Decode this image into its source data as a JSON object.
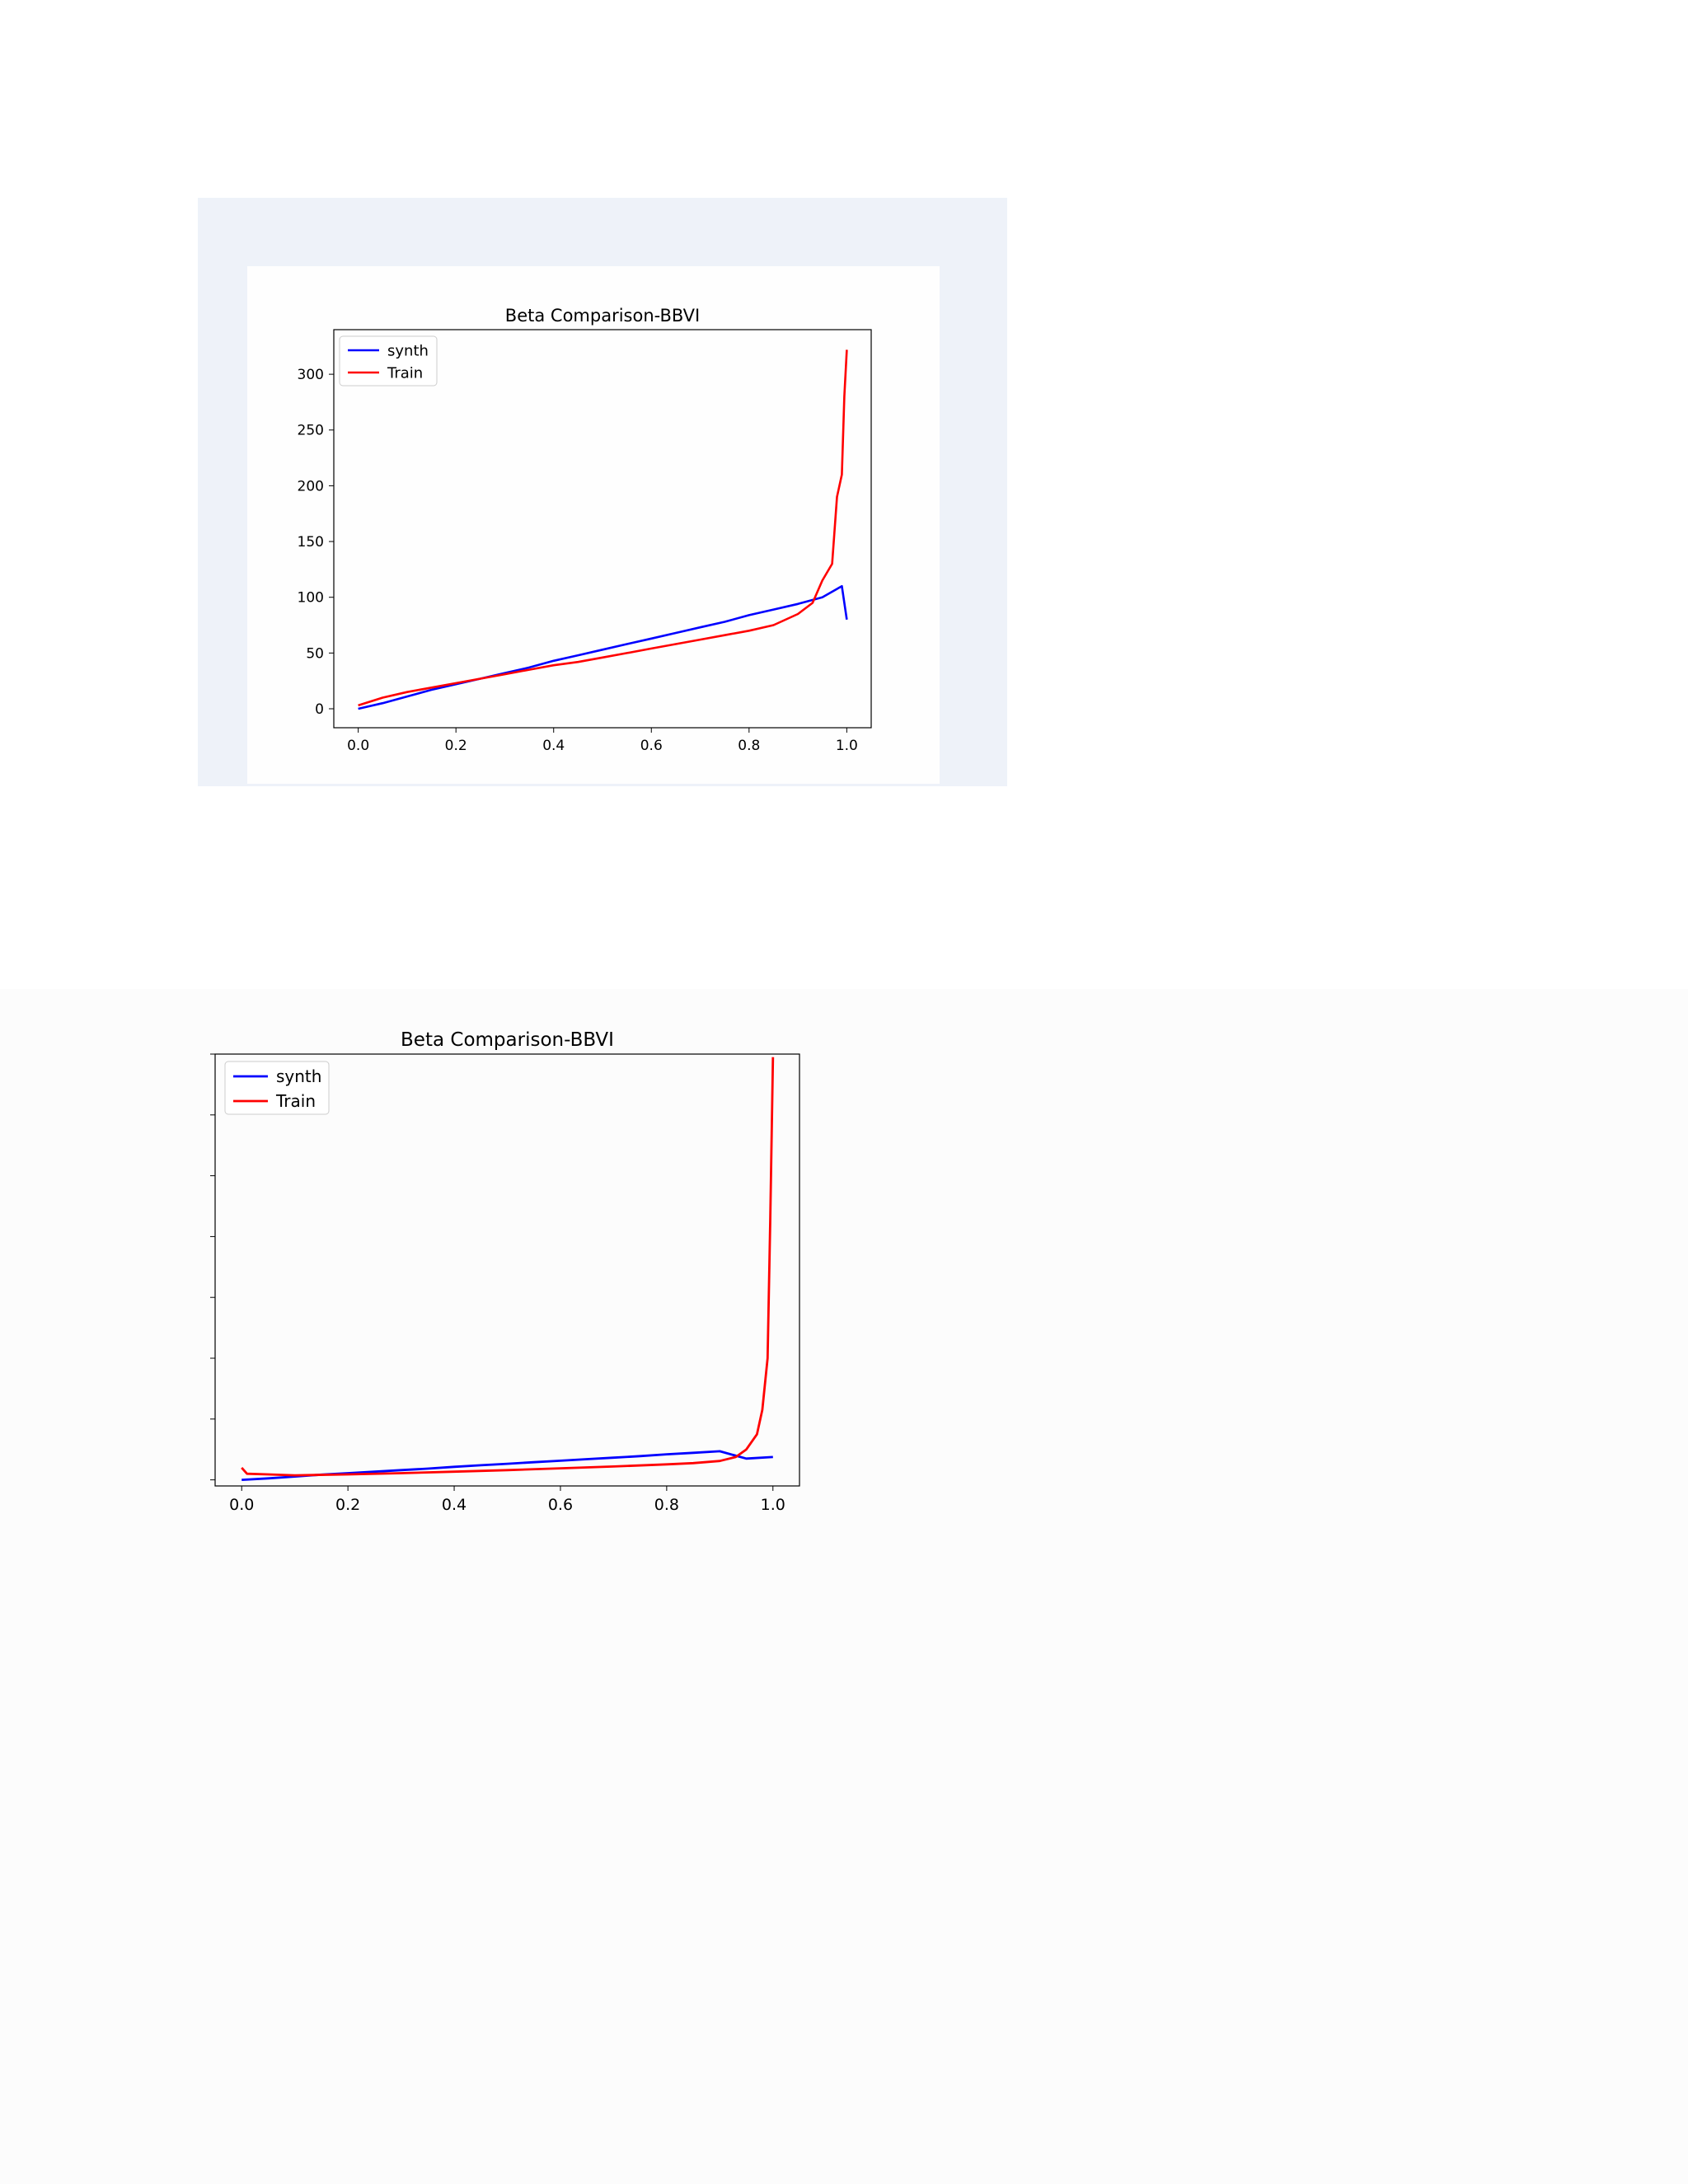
{
  "chart_data": [
    {
      "type": "line",
      "title": "Beta Comparison-BBVI",
      "xlabel": "",
      "ylabel": "",
      "xlim": [
        -0.05,
        1.05
      ],
      "ylim": [
        -17,
        340
      ],
      "xticks": [
        "0.0",
        "0.2",
        "0.4",
        "0.6",
        "0.8",
        "1.0"
      ],
      "yticks": [
        "0",
        "50",
        "100",
        "150",
        "200",
        "250",
        "300"
      ],
      "legend_position": "upper-left",
      "grid": false,
      "colors": {
        "synth": "#0000ff",
        "Train": "#ff0000"
      },
      "series": [
        {
          "name": "synth",
          "x": [
            0.0,
            0.05,
            0.1,
            0.15,
            0.2,
            0.25,
            0.3,
            0.35,
            0.4,
            0.45,
            0.5,
            0.55,
            0.6,
            0.65,
            0.7,
            0.75,
            0.8,
            0.85,
            0.9,
            0.95,
            0.99,
            1.0
          ],
          "values": [
            0,
            5,
            11,
            17,
            22,
            27,
            32,
            37,
            43,
            48,
            53,
            58,
            63,
            68,
            73,
            78,
            84,
            89,
            94,
            100,
            110,
            80
          ]
        },
        {
          "name": "Train",
          "x": [
            0.0,
            0.05,
            0.1,
            0.15,
            0.2,
            0.25,
            0.3,
            0.35,
            0.4,
            0.45,
            0.5,
            0.55,
            0.6,
            0.65,
            0.7,
            0.75,
            0.8,
            0.85,
            0.9,
            0.93,
            0.95,
            0.97,
            0.98,
            0.99,
            0.995,
            1.0
          ],
          "values": [
            3,
            10,
            15,
            19,
            23,
            27,
            31,
            35,
            39,
            42,
            46,
            50,
            54,
            58,
            62,
            66,
            70,
            75,
            85,
            95,
            115,
            130,
            190,
            210,
            280,
            322
          ]
        }
      ]
    },
    {
      "type": "line",
      "title": "Beta Comparison-BBVI",
      "xlabel": "",
      "ylabel": "",
      "xlim": [
        -0.05,
        1.05
      ],
      "ylim": [
        -20,
        1400
      ],
      "xticks": [
        "0.0",
        "0.2",
        "0.4",
        "0.6",
        "0.8",
        "1.0"
      ],
      "yticks": [
        "",
        "",
        "",
        "",
        "",
        "",
        "",
        "",
        ""
      ],
      "legend_position": "upper-left",
      "grid": false,
      "colors": {
        "synth": "#0000ff",
        "Train": "#ff0000"
      },
      "series": [
        {
          "name": "synth",
          "x": [
            0.0,
            0.05,
            0.1,
            0.15,
            0.2,
            0.25,
            0.3,
            0.35,
            0.4,
            0.45,
            0.5,
            0.55,
            0.6,
            0.65,
            0.7,
            0.75,
            0.8,
            0.85,
            0.9,
            0.95,
            1.0
          ],
          "values": [
            0,
            5,
            11,
            17,
            22,
            27,
            32,
            37,
            43,
            48,
            53,
            58,
            63,
            68,
            73,
            78,
            84,
            89,
            94,
            70,
            75
          ]
        },
        {
          "name": "Train",
          "x": [
            0.0,
            0.01,
            0.05,
            0.1,
            0.2,
            0.3,
            0.4,
            0.5,
            0.6,
            0.7,
            0.8,
            0.85,
            0.9,
            0.93,
            0.95,
            0.97,
            0.98,
            0.99,
            0.995,
            1.0
          ],
          "values": [
            40,
            20,
            18,
            15,
            18,
            22,
            27,
            32,
            38,
            44,
            51,
            55,
            62,
            75,
            100,
            150,
            230,
            400,
            850,
            1390
          ]
        }
      ]
    }
  ]
}
